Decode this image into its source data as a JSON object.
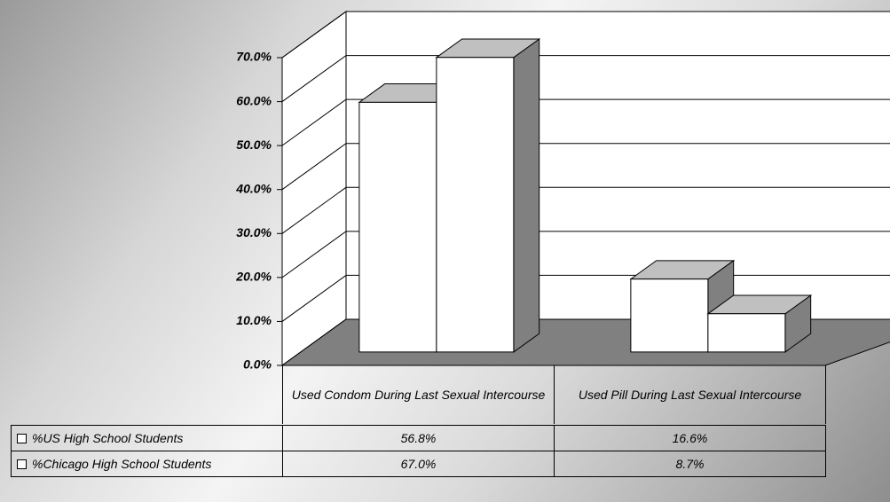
{
  "chart_data": {
    "type": "bar3d",
    "categories": [
      "Used Condom During Last Sexual Intercourse",
      "Used Pill During Last Sexual Intercourse"
    ],
    "series": [
      {
        "name": "%US High School Students",
        "color": "#ffffff",
        "values": [
          56.8,
          16.6
        ],
        "value_labels": [
          "56.8%",
          "16.6%"
        ]
      },
      {
        "name": "%Chicago High School Students",
        "color": "#ffffff",
        "values": [
          67.0,
          8.7
        ],
        "value_labels": [
          "67.0%",
          "8.7%"
        ]
      }
    ],
    "ylim": [
      0,
      70
    ],
    "yticks": [
      {
        "value": 0,
        "label": "0.0%"
      },
      {
        "value": 10,
        "label": "10.0%"
      },
      {
        "value": 20,
        "label": "20.0%"
      },
      {
        "value": 30,
        "label": "30.0%"
      },
      {
        "value": 40,
        "label": "40.0%"
      },
      {
        "value": 50,
        "label": "50.0%"
      },
      {
        "value": 60,
        "label": "60.0%"
      },
      {
        "value": 70,
        "label": "70.0%"
      }
    ],
    "grid": true
  }
}
